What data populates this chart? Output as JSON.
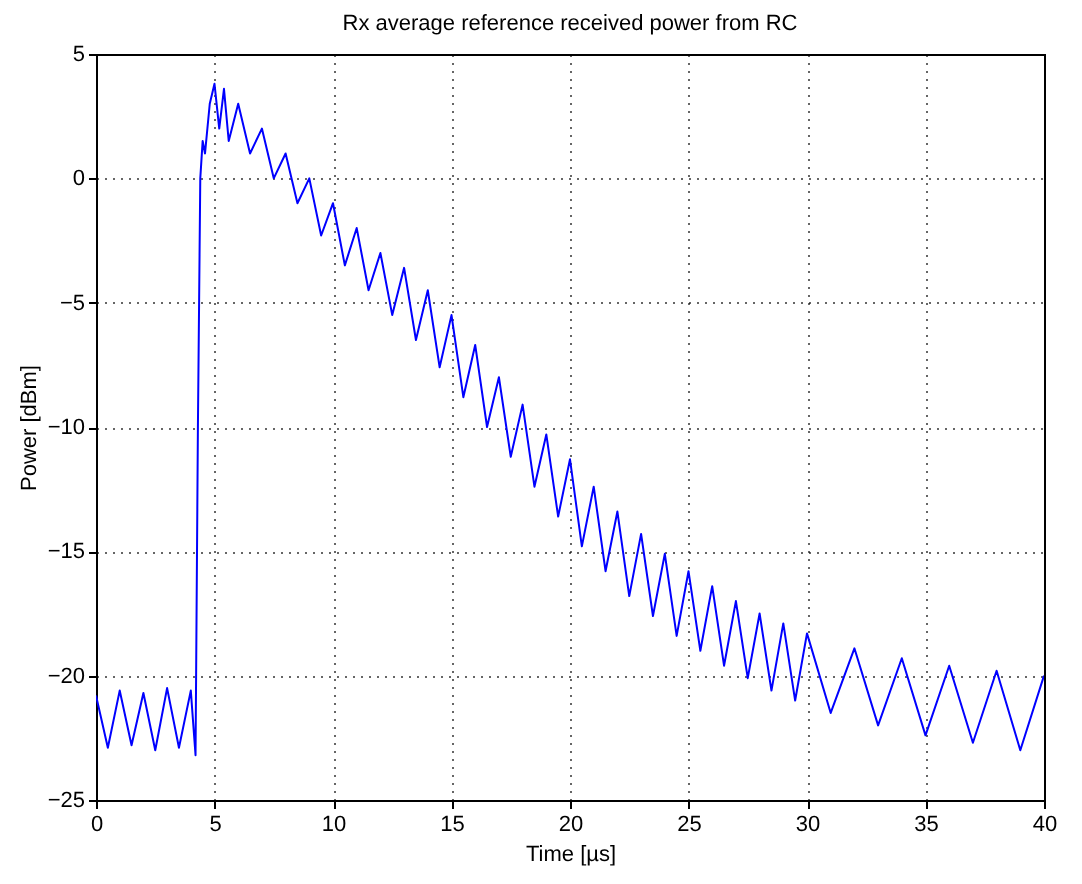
{
  "chart_data": {
    "type": "line",
    "title": "Rx average reference received power from RC",
    "xlabel": "Time [µs]",
    "ylabel": "Power [dBm]",
    "xlim": [
      0,
      40
    ],
    "xticks": [
      0,
      5,
      10,
      15,
      20,
      25,
      30,
      35,
      40
    ],
    "ylim": [
      -25,
      5
    ],
    "yticks": [
      -25,
      -20,
      -15,
      -10,
      -5,
      0,
      5
    ],
    "grid": true,
    "line_style": "solid",
    "series": [
      {
        "color": "#0000ff",
        "x": [
          0,
          0.5,
          1,
          1.5,
          2,
          2.5,
          3,
          3.5,
          4,
          4.2,
          4.3,
          4.4,
          4.5,
          4.6,
          4.8,
          5.0,
          5.2,
          5.4,
          5.6,
          6,
          6.5,
          7,
          7.5,
          8,
          8.5,
          9,
          9.5,
          10,
          10.5,
          11,
          11.5,
          12,
          12.5,
          13,
          13.5,
          14,
          14.5,
          15,
          15.5,
          16,
          16.5,
          17,
          17.5,
          18,
          18.5,
          19,
          19.5,
          20,
          20.5,
          21,
          21.5,
          22,
          22.5,
          23,
          23.5,
          24,
          24.5,
          25,
          25.5,
          26,
          26.5,
          27,
          27.5,
          28,
          28.5,
          29,
          29.5,
          30,
          31,
          32,
          33,
          34,
          35,
          36,
          37,
          38,
          39,
          40
        ],
        "values": [
          -20.8,
          -22.9,
          -20.6,
          -22.8,
          -20.7,
          -23,
          -20.5,
          -22.9,
          -20.6,
          -23.2,
          -10,
          0,
          1.5,
          1,
          3,
          3.8,
          2,
          3.6,
          1.5,
          3.0,
          1.0,
          2.0,
          0.0,
          1.0,
          -1.0,
          0.0,
          -2.3,
          -1.0,
          -3.5,
          -2.0,
          -4.5,
          -3.0,
          -5.5,
          -3.6,
          -6.5,
          -4.5,
          -7.6,
          -5.5,
          -8.8,
          -6.7,
          -10,
          -8.0,
          -11.2,
          -9.1,
          -12.4,
          -10.3,
          -13.6,
          -11.3,
          -14.8,
          -12.4,
          -15.8,
          -13.4,
          -16.8,
          -14.3,
          -17.6,
          -15.1,
          -18.4,
          -15.8,
          -19.0,
          -16.4,
          -19.6,
          -17.0,
          -20.1,
          -17.5,
          -20.6,
          -17.9,
          -21.0,
          -18.3,
          -21.5,
          -18.9,
          -22,
          -19.3,
          -22.4,
          -19.6,
          -22.7,
          -19.8,
          -23,
          -20.0
        ]
      }
    ]
  }
}
